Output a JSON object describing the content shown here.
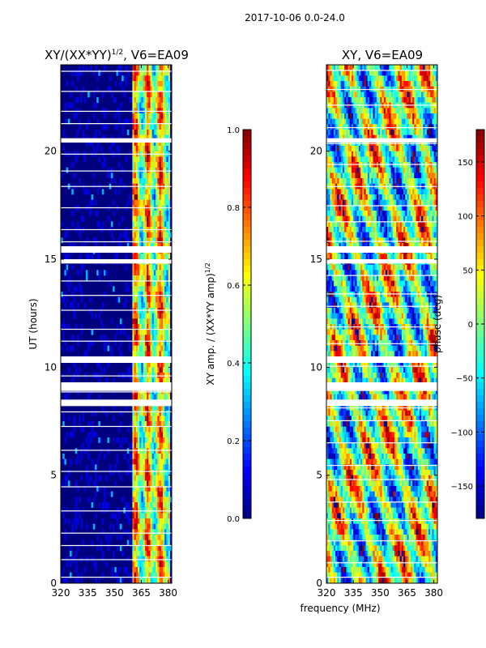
{
  "suptitle": "2017-10-06 0.0-24.0",
  "shared_xlabel": "frequency (MHz)",
  "colormap": [
    "#00007f",
    "#0000ff",
    "#007fff",
    "#00ffff",
    "#7fff7f",
    "#ffff00",
    "#ff7f00",
    "#ff0000",
    "#7f0000"
  ],
  "chart_data": [
    {
      "type": "heatmap",
      "title": "XY/(XX*YY)1/2, V6=EA09",
      "title_main": "XY/(XX*YY)",
      "title_sup": "1/2",
      "title_tail": ", V6=EA09",
      "xlabel": "frequency (MHz)",
      "ylabel": "UT (hours)",
      "xlim": [
        320,
        382
      ],
      "ylim": [
        0,
        24
      ],
      "xticks": [
        320,
        335,
        350,
        365,
        380
      ],
      "yticks": [
        0,
        5,
        10,
        15,
        20
      ],
      "colorbar": {
        "label": "XY amp. / (XX*YY amp)1/2",
        "label_main": "XY amp. / (XX*YY amp)",
        "label_sup": "1/2",
        "range": [
          0.0,
          1.0
        ],
        "ticks": [
          "0.0",
          "0.2",
          "0.4",
          "0.6",
          "0.8",
          "1.0"
        ],
        "tick_values": [
          0.0,
          0.2,
          0.4,
          0.6,
          0.8,
          1.0
        ]
      },
      "active_band_mhz": [
        360,
        381
      ],
      "flagged_hours": [
        [
          8.2,
          8.5
        ],
        [
          8.9,
          9.3
        ],
        [
          10.2,
          10.5
        ],
        [
          14.8,
          15.0
        ],
        [
          15.3,
          15.6
        ],
        [
          20.4,
          20.6
        ]
      ]
    },
    {
      "type": "heatmap",
      "title": "XY, V6=EA09",
      "xlabel": "frequency (MHz)",
      "ylabel": "",
      "xlim": [
        320,
        382
      ],
      "ylim": [
        0,
        24
      ],
      "xticks": [
        320,
        335,
        350,
        365,
        380
      ],
      "yticks": [
        0,
        5,
        10,
        15,
        20
      ],
      "colorbar": {
        "label": "phase (deg)",
        "range": [
          -180,
          180
        ],
        "ticks": [
          "−150",
          "−100",
          "−50",
          "0",
          "50",
          "100",
          "150"
        ],
        "tick_values": [
          -150,
          -100,
          -50,
          0,
          50,
          100,
          150
        ]
      },
      "flagged_hours": [
        [
          8.2,
          8.5
        ],
        [
          8.9,
          9.3
        ],
        [
          10.2,
          10.5
        ],
        [
          14.8,
          15.0
        ],
        [
          15.3,
          15.6
        ],
        [
          20.4,
          20.6
        ]
      ]
    }
  ]
}
